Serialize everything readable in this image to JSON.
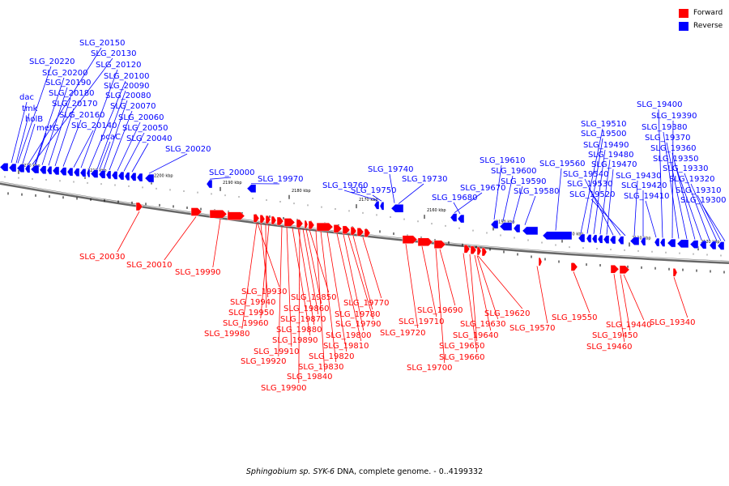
{
  "legend": [
    {
      "label": "Forward",
      "color": "#ff0000"
    },
    {
      "label": "Reverse",
      "color": "#0000ff"
    }
  ],
  "caption": {
    "species": "Sphingobium sp. SYK-6",
    "rest": " DNA, complete genome. - 0..4199332"
  },
  "scale_labels": [
    "2220 kbp",
    "2210 kbp",
    "2200 kbp",
    "2190 kbp",
    "2180 kbp",
    "2170 kbp",
    "2160 kbp",
    "2150 kbp",
    "2140 kbp",
    "2130 kbp",
    "2120 kbp"
  ],
  "reverse_labels": [
    "SLG_20150",
    "SLG_20130",
    "SLG_20220",
    "SLG_20120",
    "SLG_20200",
    "SLG_20100",
    "SLG_20190",
    "SLG_20090",
    "dac",
    "SLG_20180",
    "SLG_20080",
    "tmk",
    "SLG_20170",
    "SLG_20070",
    "holB",
    "SLG_20160",
    "SLG_20060",
    "metG",
    "SLG_20140",
    "SLG_20050",
    "pcaC",
    "SLG_20040",
    "SLG_20020",
    "SLG_20000",
    "SLG_19970",
    "SLG_19760",
    "SLG_19750",
    "SLG_19740",
    "SLG_19730",
    "SLG_19670",
    "SLG_19680",
    "SLG_19610",
    "SLG_19600",
    "SLG_19590",
    "SLG_19580",
    "SLG_19560",
    "SLG_19510",
    "SLG_19500",
    "SLG_19490",
    "SLG_19480",
    "SLG_19470",
    "SLG_19540",
    "SLG_19530",
    "SLG_19520",
    "SLG_19430",
    "SLG_19420",
    "SLG_19410",
    "SLG_19400",
    "SLG_19390",
    "SLG_19380",
    "SLG_19370",
    "SLG_19360",
    "SLG_19350",
    "SLG_19330",
    "SLG_19320",
    "SLG_19310",
    "SLG_19300"
  ],
  "forward_labels": [
    "SLG_20030",
    "SLG_20010",
    "SLG_19990",
    "SLG_19930",
    "SLG_19940",
    "SLG_19950",
    "SLG_19960",
    "SLG_19980",
    "SLG_19850",
    "SLG_19860",
    "SLG_19870",
    "SLG_19880",
    "SLG_19890",
    "SLG_19910",
    "SLG_19920",
    "SLG_19900",
    "SLG_19840",
    "SLG_19830",
    "SLG_19820",
    "SLG_19810",
    "SLG_19800",
    "SLG_19790",
    "SLG_19780",
    "SLG_19770",
    "SLG_19720",
    "SLG_19710",
    "SLG_19700",
    "SLG_19690",
    "SLG_19660",
    "SLG_19650",
    "SLG_19640",
    "SLG_19630",
    "SLG_19620",
    "SLG_19570",
    "SLG_19550",
    "SLG_19460",
    "SLG_19450",
    "SLG_19440",
    "SLG_19340"
  ]
}
